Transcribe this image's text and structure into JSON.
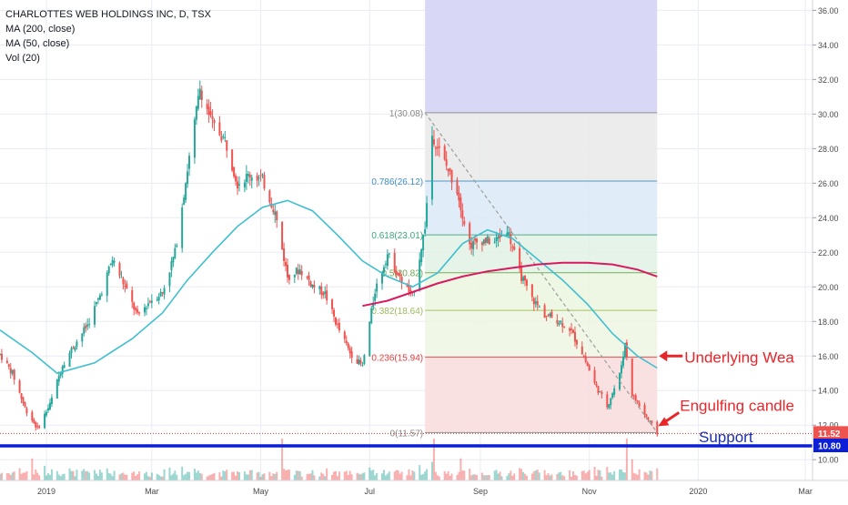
{
  "legend": {
    "title": "CHARLOTTES WEB HOLDINGS INC, D, TSX",
    "ma200": "MA (200, close)",
    "ma50": "MA (50, close)",
    "vol": "Vol (20)"
  },
  "colors": {
    "up": "#26a69a",
    "down": "#ef5350",
    "ma50": "#3fbfd0",
    "ma200": "#d81b60",
    "support": "#0a1fd6",
    "annotation": "#e8262a",
    "grid": "#e9ecf2",
    "axis_text": "#4a4a4a"
  },
  "chart_data": {
    "type": "candlestick",
    "title": "CHARLOTTES WEB HOLDINGS INC, D, TSX",
    "x_axis": {
      "tick_labels": [
        "2019",
        "Mar",
        "May",
        "Jul",
        "Sep",
        "Nov",
        "2020",
        "Mar"
      ],
      "range": [
        "2018-12-06",
        "2020-03-05"
      ]
    },
    "y_axis": {
      "tick_labels": [
        "10.00",
        "12.00",
        "14.00",
        "16.00",
        "18.00",
        "20.00",
        "22.00",
        "24.00",
        "26.00",
        "28.00",
        "30.00",
        "32.00",
        "34.00",
        "36.00"
      ],
      "range": [
        8.8,
        36.6
      ],
      "grid": true
    },
    "price_path": [
      {
        "date": "2018-12-06",
        "close": 16.1
      },
      {
        "date": "2018-12-13",
        "close": 15.0
      },
      {
        "date": "2018-12-20",
        "close": 13.0
      },
      {
        "date": "2018-12-27",
        "close": 11.8
      },
      {
        "date": "2019-01-03",
        "close": 13.2
      },
      {
        "date": "2019-01-10",
        "close": 15.5
      },
      {
        "date": "2019-01-17",
        "close": 16.7
      },
      {
        "date": "2019-01-24",
        "close": 17.8
      },
      {
        "date": "2019-01-31",
        "close": 19.5
      },
      {
        "date": "2019-02-07",
        "close": 21.6
      },
      {
        "date": "2019-02-14",
        "close": 20.0
      },
      {
        "date": "2019-02-21",
        "close": 18.3
      },
      {
        "date": "2019-02-28",
        "close": 19.2
      },
      {
        "date": "2019-03-07",
        "close": 19.7
      },
      {
        "date": "2019-03-14",
        "close": 22.0
      },
      {
        "date": "2019-03-21",
        "close": 26.8
      },
      {
        "date": "2019-03-28",
        "close": 31.5
      },
      {
        "date": "2019-04-04",
        "close": 29.4
      },
      {
        "date": "2019-04-11",
        "close": 28.5
      },
      {
        "date": "2019-04-18",
        "close": 26.0
      },
      {
        "date": "2019-04-25",
        "close": 26.5
      },
      {
        "date": "2019-05-02",
        "close": 26.2
      },
      {
        "date": "2019-05-09",
        "close": 24.3
      },
      {
        "date": "2019-05-16",
        "close": 20.6
      },
      {
        "date": "2019-05-23",
        "close": 21.0
      },
      {
        "date": "2019-05-30",
        "close": 20.1
      },
      {
        "date": "2019-06-06",
        "close": 19.6
      },
      {
        "date": "2019-06-13",
        "close": 17.7
      },
      {
        "date": "2019-06-20",
        "close": 16.2
      },
      {
        "date": "2019-06-27",
        "close": 15.4
      },
      {
        "date": "2019-07-04",
        "close": 19.8
      },
      {
        "date": "2019-07-11",
        "close": 21.9
      },
      {
        "date": "2019-07-18",
        "close": 20.5
      },
      {
        "date": "2019-07-25",
        "close": 19.4
      },
      {
        "date": "2019-08-01",
        "close": 23.5
      },
      {
        "date": "2019-08-05",
        "close": 28.8
      },
      {
        "date": "2019-08-12",
        "close": 27.2
      },
      {
        "date": "2019-08-19",
        "close": 25.6
      },
      {
        "date": "2019-08-26",
        "close": 22.4
      },
      {
        "date": "2019-09-02",
        "close": 22.7
      },
      {
        "date": "2019-09-09",
        "close": 22.6
      },
      {
        "date": "2019-09-16",
        "close": 23.4
      },
      {
        "date": "2019-09-23",
        "close": 20.8
      },
      {
        "date": "2019-09-30",
        "close": 19.3
      },
      {
        "date": "2019-10-07",
        "close": 18.4
      },
      {
        "date": "2019-10-14",
        "close": 18.1
      },
      {
        "date": "2019-10-21",
        "close": 17.6
      },
      {
        "date": "2019-10-28",
        "close": 16.2
      },
      {
        "date": "2019-11-04",
        "close": 14.4
      },
      {
        "date": "2019-11-11",
        "close": 13.1
      },
      {
        "date": "2019-11-18",
        "close": 14.9
      },
      {
        "date": "2019-11-21",
        "close": 16.7
      },
      {
        "date": "2019-11-25",
        "close": 13.8
      },
      {
        "date": "2019-12-02",
        "close": 12.6
      },
      {
        "date": "2019-12-09",
        "close": 11.52
      }
    ],
    "series": [
      {
        "name": "MA (50, close)",
        "points": [
          {
            "date": "2018-12-06",
            "value": 17.5
          },
          {
            "date": "2018-12-24",
            "value": 16.2
          },
          {
            "date": "2019-01-07",
            "value": 15.0
          },
          {
            "date": "2019-01-28",
            "value": 15.6
          },
          {
            "date": "2019-02-18",
            "value": 17.0
          },
          {
            "date": "2019-03-07",
            "value": 18.5
          },
          {
            "date": "2019-03-21",
            "value": 20.4
          },
          {
            "date": "2019-04-04",
            "value": 22.0
          },
          {
            "date": "2019-04-18",
            "value": 23.5
          },
          {
            "date": "2019-05-02",
            "value": 24.6
          },
          {
            "date": "2019-05-16",
            "value": 25.0
          },
          {
            "date": "2019-05-30",
            "value": 24.4
          },
          {
            "date": "2019-06-13",
            "value": 23.0
          },
          {
            "date": "2019-06-27",
            "value": 21.5
          },
          {
            "date": "2019-07-11",
            "value": 20.6
          },
          {
            "date": "2019-07-25",
            "value": 20.0
          },
          {
            "date": "2019-08-08",
            "value": 20.8
          },
          {
            "date": "2019-08-22",
            "value": 22.5
          },
          {
            "date": "2019-09-05",
            "value": 23.3
          },
          {
            "date": "2019-09-19",
            "value": 22.8
          },
          {
            "date": "2019-10-03",
            "value": 21.6
          },
          {
            "date": "2019-10-17",
            "value": 20.4
          },
          {
            "date": "2019-10-31",
            "value": 19.0
          },
          {
            "date": "2019-11-14",
            "value": 17.3
          },
          {
            "date": "2019-11-28",
            "value": 16.0
          },
          {
            "date": "2019-12-09",
            "value": 15.3
          }
        ]
      },
      {
        "name": "MA (200, close)",
        "points": [
          {
            "date": "2019-06-27",
            "value": 18.9
          },
          {
            "date": "2019-07-11",
            "value": 19.2
          },
          {
            "date": "2019-07-25",
            "value": 19.7
          },
          {
            "date": "2019-08-08",
            "value": 20.2
          },
          {
            "date": "2019-08-22",
            "value": 20.6
          },
          {
            "date": "2019-09-05",
            "value": 20.9
          },
          {
            "date": "2019-09-19",
            "value": 21.1
          },
          {
            "date": "2019-10-03",
            "value": 21.3
          },
          {
            "date": "2019-10-17",
            "value": 21.4
          },
          {
            "date": "2019-10-31",
            "value": 21.4
          },
          {
            "date": "2019-11-14",
            "value": 21.3
          },
          {
            "date": "2019-11-28",
            "value": 21.0
          },
          {
            "date": "2019-12-09",
            "value": 20.6
          }
        ]
      }
    ],
    "fibonacci": {
      "start": "2019-08-01",
      "end": "2019-12-09",
      "levels": [
        {
          "label": "1(30.08)",
          "ratio": 1,
          "price": 30.08,
          "fill": "#e9e9e9"
        },
        {
          "label": "0.786(26.12)",
          "ratio": 0.786,
          "price": 26.12,
          "fill": "#dbeaf7"
        },
        {
          "label": "0.618(23.01)",
          "ratio": 0.618,
          "price": 23.01,
          "fill": "#e1f1e5"
        },
        {
          "label": "0.5(20.82)",
          "ratio": 0.5,
          "price": 20.82,
          "fill": "#ebf6df"
        },
        {
          "label": "0.382(18.64)",
          "ratio": 0.382,
          "price": 18.64,
          "fill": "#eef6e2"
        },
        {
          "label": "0.236(15.94)",
          "ratio": 0.236,
          "price": 15.94,
          "fill": "#f9dcdc"
        },
        {
          "label": "0(11.57)",
          "ratio": 0,
          "price": 11.57,
          "fill": null
        }
      ],
      "label_colors": [
        "#888888",
        "#3f8fc4",
        "#3aa77a",
        "#6aa84f",
        "#9bbb59",
        "#e33f3f",
        "#888888"
      ],
      "top_shade": {
        "from": 30.08,
        "to": 36.6,
        "fill": "#d8d8f6"
      }
    },
    "trendline": {
      "from": {
        "date": "2019-08-01",
        "price": 30.08
      },
      "to": {
        "date": "2019-12-09",
        "price": 11.57
      },
      "style": "dashed"
    },
    "support_level": {
      "price": 10.8,
      "label": "Support"
    },
    "last_price": 11.52,
    "last_price_label": "11.52",
    "support_price_label": "10.80",
    "annotations": [
      {
        "text": "Underlying Wea",
        "at": {
          "date": "2019-12-09",
          "price": 16.0
        }
      },
      {
        "text": "Engulfing candle",
        "at": {
          "date": "2019-12-09",
          "price": 12.1
        }
      }
    ]
  }
}
